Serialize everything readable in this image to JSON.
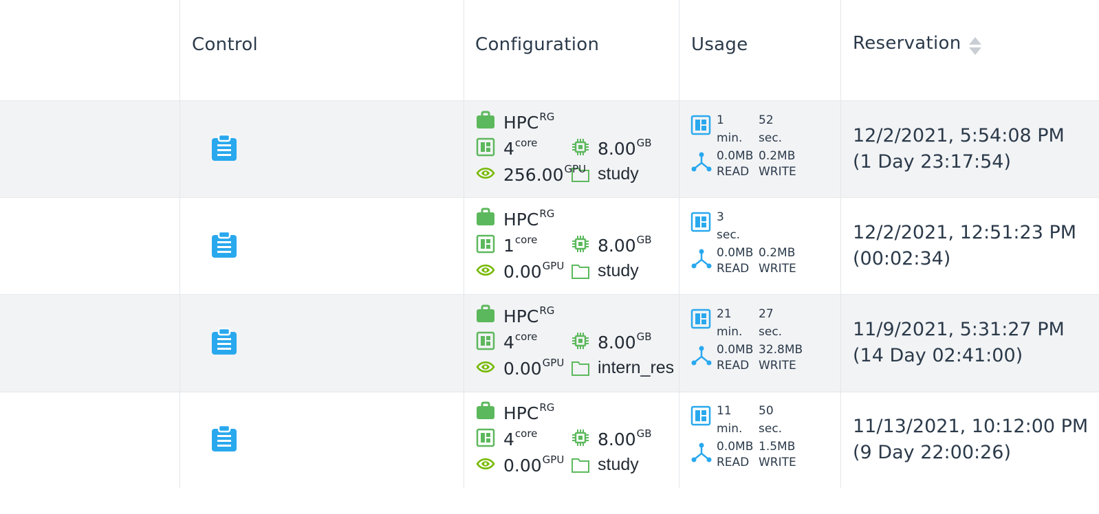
{
  "header": {
    "control": "Control",
    "configuration": "Configuration",
    "usage": "Usage",
    "reservation": "Reservation"
  },
  "colors": {
    "green": "#5cb85c",
    "nvidia": "#76b900",
    "blue": "#29a8ee",
    "striped_row": "#f2f3f5"
  },
  "rows": [
    {
      "config": {
        "group": "HPC",
        "group_sup": "RG",
        "cores": "4",
        "cores_unit": "core",
        "memory": "8.00",
        "memory_unit": "GB",
        "gpu": "256.00",
        "gpu_unit": "GPU",
        "project": "study"
      },
      "usage": {
        "t1": "1",
        "t1_unit": "min.",
        "t2": "52",
        "t2_unit": "sec.",
        "read": "0.0MB",
        "read_label": "READ",
        "write": "0.2MB",
        "write_label": "WRITE"
      },
      "reservation": {
        "date": "12/2/2021, 5:54:08 PM",
        "elapsed": "(1 Day 23:17:54)"
      }
    },
    {
      "config": {
        "group": "HPC",
        "group_sup": "RG",
        "cores": "1",
        "cores_unit": "core",
        "memory": "8.00",
        "memory_unit": "GB",
        "gpu": "0.00",
        "gpu_unit": "GPU",
        "project": "study"
      },
      "usage": {
        "t1": "3",
        "t1_unit": "sec.",
        "t2": "",
        "t2_unit": "",
        "read": "0.0MB",
        "read_label": "READ",
        "write": "0.2MB",
        "write_label": "WRITE"
      },
      "reservation": {
        "date": "12/2/2021, 12:51:23 PM",
        "elapsed": "(00:02:34)"
      }
    },
    {
      "config": {
        "group": "HPC",
        "group_sup": "RG",
        "cores": "4",
        "cores_unit": "core",
        "memory": "8.00",
        "memory_unit": "GB",
        "gpu": "0.00",
        "gpu_unit": "GPU",
        "project": "intern_res"
      },
      "usage": {
        "t1": "21",
        "t1_unit": "min.",
        "t2": "27",
        "t2_unit": "sec.",
        "read": "0.0MB",
        "read_label": "READ",
        "write": "32.8MB",
        "write_label": "WRITE"
      },
      "reservation": {
        "date": "11/9/2021, 5:31:27 PM",
        "elapsed": "(14 Day 02:41:00)"
      }
    },
    {
      "config": {
        "group": "HPC",
        "group_sup": "RG",
        "cores": "4",
        "cores_unit": "core",
        "memory": "8.00",
        "memory_unit": "GB",
        "gpu": "0.00",
        "gpu_unit": "GPU",
        "project": "study"
      },
      "usage": {
        "t1": "11",
        "t1_unit": "min.",
        "t2": "50",
        "t2_unit": "sec.",
        "read": "0.0MB",
        "read_label": "READ",
        "write": "1.5MB",
        "write_label": "WRITE"
      },
      "reservation": {
        "date": "11/13/2021, 10:12:00 PM",
        "elapsed": "(9 Day 22:00:26)"
      }
    }
  ]
}
